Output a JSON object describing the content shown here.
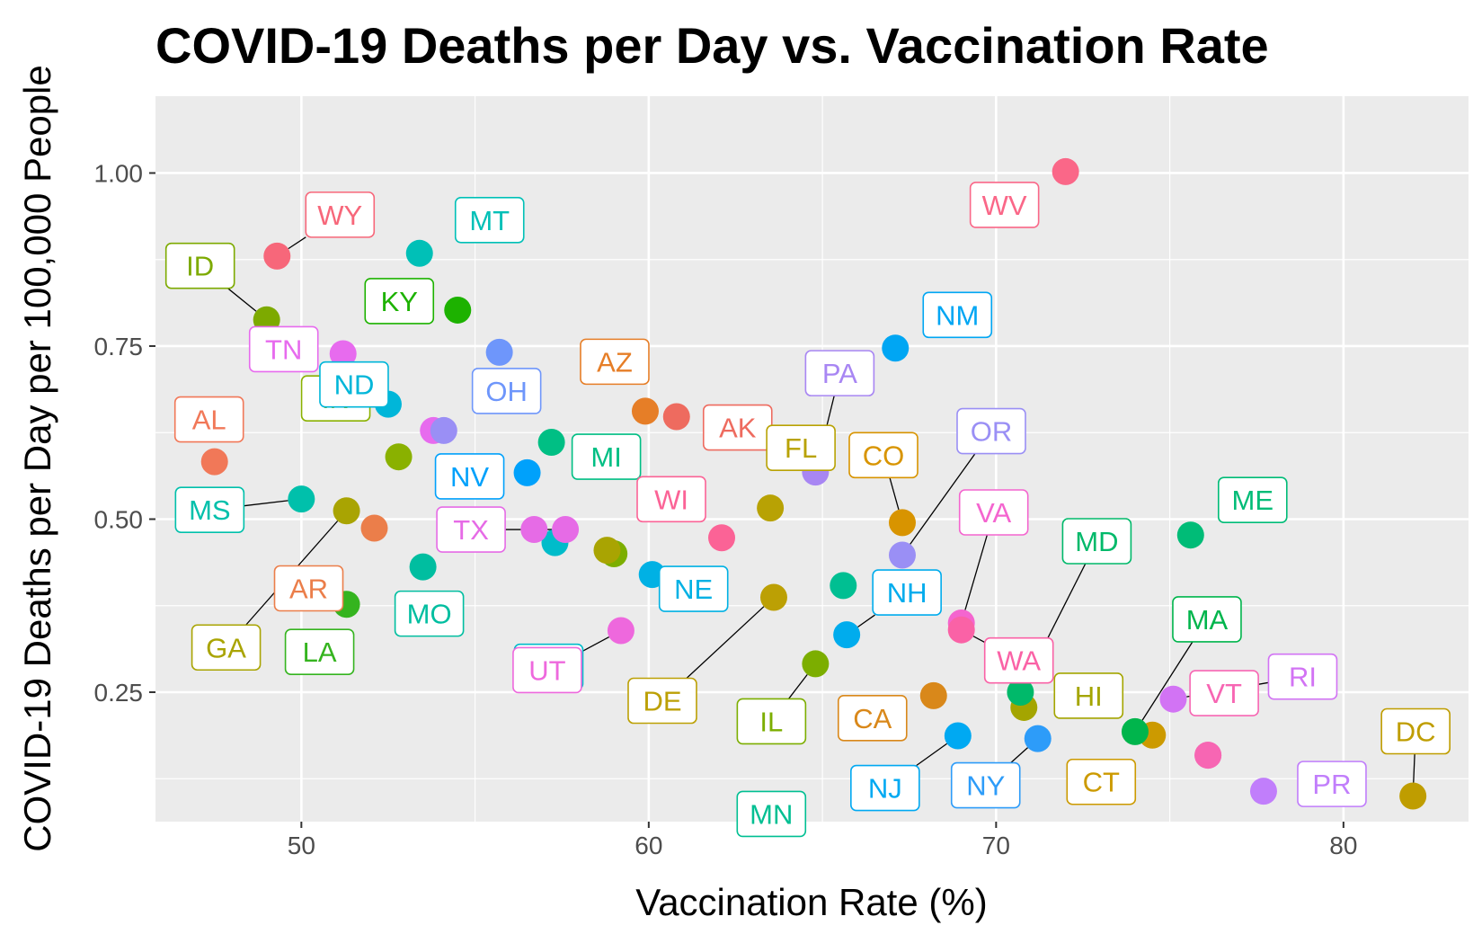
{
  "chart_data": {
    "type": "scatter",
    "title": "COVID-19 Deaths per Day vs. Vaccination Rate",
    "xlabel": "Vaccination Rate (%)",
    "ylabel": "COVID-19 Deaths per Day per 100,000 People",
    "xlim": [
      45.8,
      83.6
    ],
    "ylim": [
      0.063,
      1.111
    ],
    "xticks": [
      50,
      60,
      70,
      80
    ],
    "yticks": [
      0.25,
      0.5,
      0.75,
      1.0
    ],
    "xtick_labels": [
      "50",
      "60",
      "70",
      "80"
    ],
    "ytick_labels": [
      "0.25",
      "0.50",
      "0.75",
      "1.00"
    ],
    "grid": true,
    "legend": "none",
    "points": [
      {
        "label": "AK",
        "x": 60.8,
        "y": 0.648,
        "color": "#EE6B5F"
      },
      {
        "label": "AL",
        "x": 47.5,
        "y": 0.583,
        "color": "#F17858"
      },
      {
        "label": "AR",
        "x": 52.1,
        "y": 0.487,
        "color": "#EB7E4A"
      },
      {
        "label": "AZ",
        "x": 59.9,
        "y": 0.656,
        "color": "#E67E27"
      },
      {
        "label": "CA",
        "x": 68.2,
        "y": 0.245,
        "color": "#D9881A"
      },
      {
        "label": "CO",
        "x": 67.3,
        "y": 0.495,
        "color": "#D89400"
      },
      {
        "label": "CT",
        "x": 74.5,
        "y": 0.188,
        "color": "#CC9A00"
      },
      {
        "label": "DC",
        "x": 82.0,
        "y": 0.1,
        "color": "#BF9D00"
      },
      {
        "label": "DE",
        "x": 63.6,
        "y": 0.387,
        "color": "#BCA004"
      },
      {
        "label": "FL",
        "x": 63.5,
        "y": 0.516,
        "color": "#B8A204"
      },
      {
        "label": "GA",
        "x": 51.3,
        "y": 0.512,
        "color": "#A9A402"
      },
      {
        "label": "HI",
        "x": 70.8,
        "y": 0.228,
        "color": "#A4A500"
      },
      {
        "label": "ID",
        "x": 49.0,
        "y": 0.788,
        "color": "#7DAA00"
      },
      {
        "label": "IL",
        "x": 64.8,
        "y": 0.291,
        "color": "#7CAE00"
      },
      {
        "label": "IN",
        "x": 52.8,
        "y": 0.59,
        "color": "#8AB100"
      },
      {
        "label": "KY",
        "x": 54.5,
        "y": 0.802,
        "color": "#1DB200"
      },
      {
        "label": "LA",
        "x": 51.3,
        "y": 0.377,
        "color": "#35B41F"
      },
      {
        "label": "MA",
        "x": 74.0,
        "y": 0.193,
        "color": "#00B54C"
      },
      {
        "label": "MD",
        "x": 70.7,
        "y": 0.25,
        "color": "#00B96A"
      },
      {
        "label": "ME",
        "x": 75.6,
        "y": 0.477,
        "color": "#00BC77"
      },
      {
        "label": "MI",
        "x": 57.2,
        "y": 0.611,
        "color": "#00BF84"
      },
      {
        "label": "MN",
        "x": 65.6,
        "y": 0.404,
        "color": "#00BF92"
      },
      {
        "label": "MO",
        "x": 53.5,
        "y": 0.431,
        "color": "#00BEA0"
      },
      {
        "label": "MS",
        "x": 50.0,
        "y": 0.529,
        "color": "#00C0AB"
      },
      {
        "label": "MT",
        "x": 53.4,
        "y": 0.884,
        "color": "#00C0B7"
      },
      {
        "label": "NC",
        "x": 57.3,
        "y": 0.466,
        "color": "#00BCCA"
      },
      {
        "label": "ND",
        "x": 52.5,
        "y": 0.666,
        "color": "#00B6D9"
      },
      {
        "label": "NE",
        "x": 60.1,
        "y": 0.42,
        "color": "#00B1E4"
      },
      {
        "label": "NH",
        "x": 65.7,
        "y": 0.333,
        "color": "#00ACED"
      },
      {
        "label": "NJ",
        "x": 68.9,
        "y": 0.187,
        "color": "#00A9F2"
      },
      {
        "label": "NM",
        "x": 67.1,
        "y": 0.747,
        "color": "#00A6F3"
      },
      {
        "label": "NV",
        "x": 56.5,
        "y": 0.567,
        "color": "#00A1FB"
      },
      {
        "label": "NY",
        "x": 71.2,
        "y": 0.183,
        "color": "#2D9CF9"
      },
      {
        "label": "OH",
        "x": 55.7,
        "y": 0.741,
        "color": "#6E96FB"
      },
      {
        "label": "OR",
        "x": 67.3,
        "y": 0.448,
        "color": "#9A8FF5"
      },
      {
        "label": "PA",
        "x": 64.8,
        "y": 0.568,
        "color": "#A886F3"
      },
      {
        "label": "PR",
        "x": 77.7,
        "y": 0.107,
        "color": "#C17EFB"
      },
      {
        "label": "RI",
        "x": 75.1,
        "y": 0.24,
        "color": "#D273F4"
      },
      {
        "label": "TN",
        "x": 51.2,
        "y": 0.739,
        "color": "#E76BEE"
      },
      {
        "label": "TX",
        "x": 57.6,
        "y": 0.485,
        "color": "#E66BE6"
      },
      {
        "label": "UT",
        "x": 59.2,
        "y": 0.339,
        "color": "#EE68DD"
      },
      {
        "label": "VA",
        "x": 69.0,
        "y": 0.35,
        "color": "#F465CF"
      },
      {
        "label": "VT",
        "x": 76.1,
        "y": 0.159,
        "color": "#F766B3"
      },
      {
        "label": "WA",
        "x": 69.0,
        "y": 0.34,
        "color": "#FA62A6"
      },
      {
        "label": "WI",
        "x": 62.1,
        "y": 0.473,
        "color": "#FB6396"
      },
      {
        "label": "WV",
        "x": 72.0,
        "y": 1.002,
        "color": "#FA6788"
      },
      {
        "label": "WY",
        "x": 49.3,
        "y": 0.88,
        "color": "#F7677A"
      }
    ],
    "extra_points": [
      {
        "x": 53.8,
        "y": 0.628,
        "color": "#E76BEE"
      },
      {
        "x": 54.1,
        "y": 0.628,
        "color": "#9A8FF5"
      },
      {
        "x": 56.7,
        "y": 0.485,
        "color": "#E66BE6"
      },
      {
        "x": 59.0,
        "y": 0.45,
        "color": "#7CAE00"
      },
      {
        "x": 58.8,
        "y": 0.455,
        "color": "#A9A402"
      },
      {
        "x": 76.1,
        "y": 0.159,
        "color": "#F766B3"
      }
    ]
  }
}
